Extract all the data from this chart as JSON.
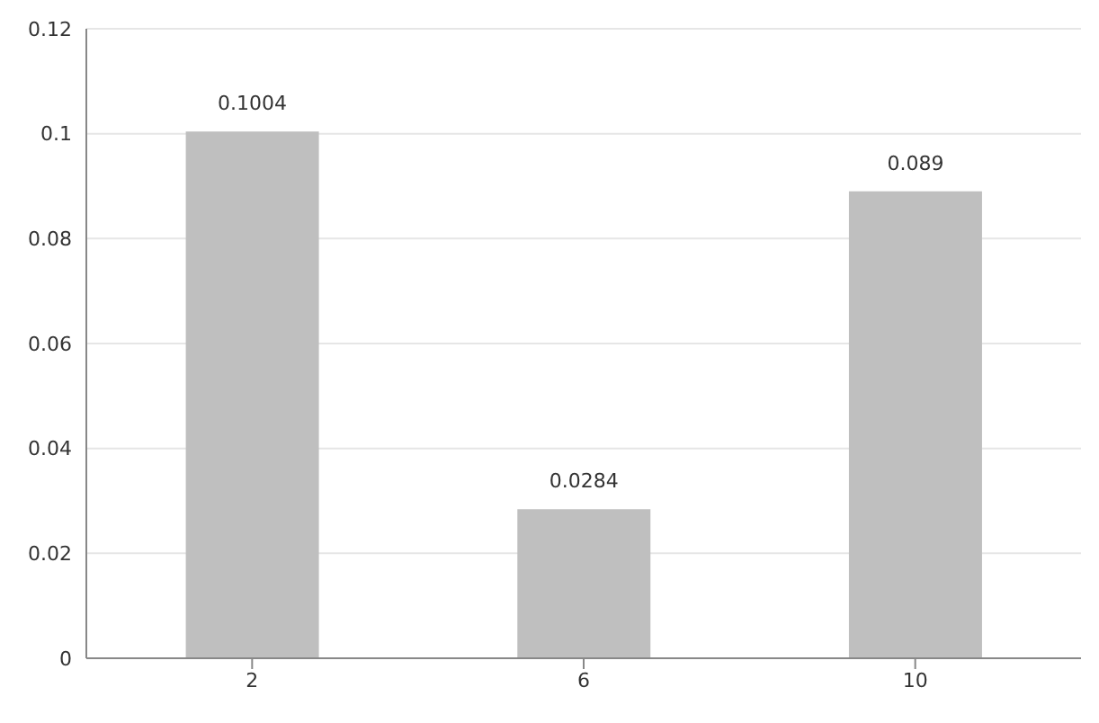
{
  "chart_data": {
    "type": "bar",
    "categories": [
      "2",
      "6",
      "10"
    ],
    "values": [
      0.1004,
      0.0284,
      0.089
    ],
    "color": "#bfbfbf",
    "ylim": [
      0,
      0.12
    ],
    "yticks": [
      0,
      0.02,
      0.04,
      0.06,
      0.08,
      0.1,
      0.12
    ],
    "grid": "y",
    "data_labels": true
  }
}
